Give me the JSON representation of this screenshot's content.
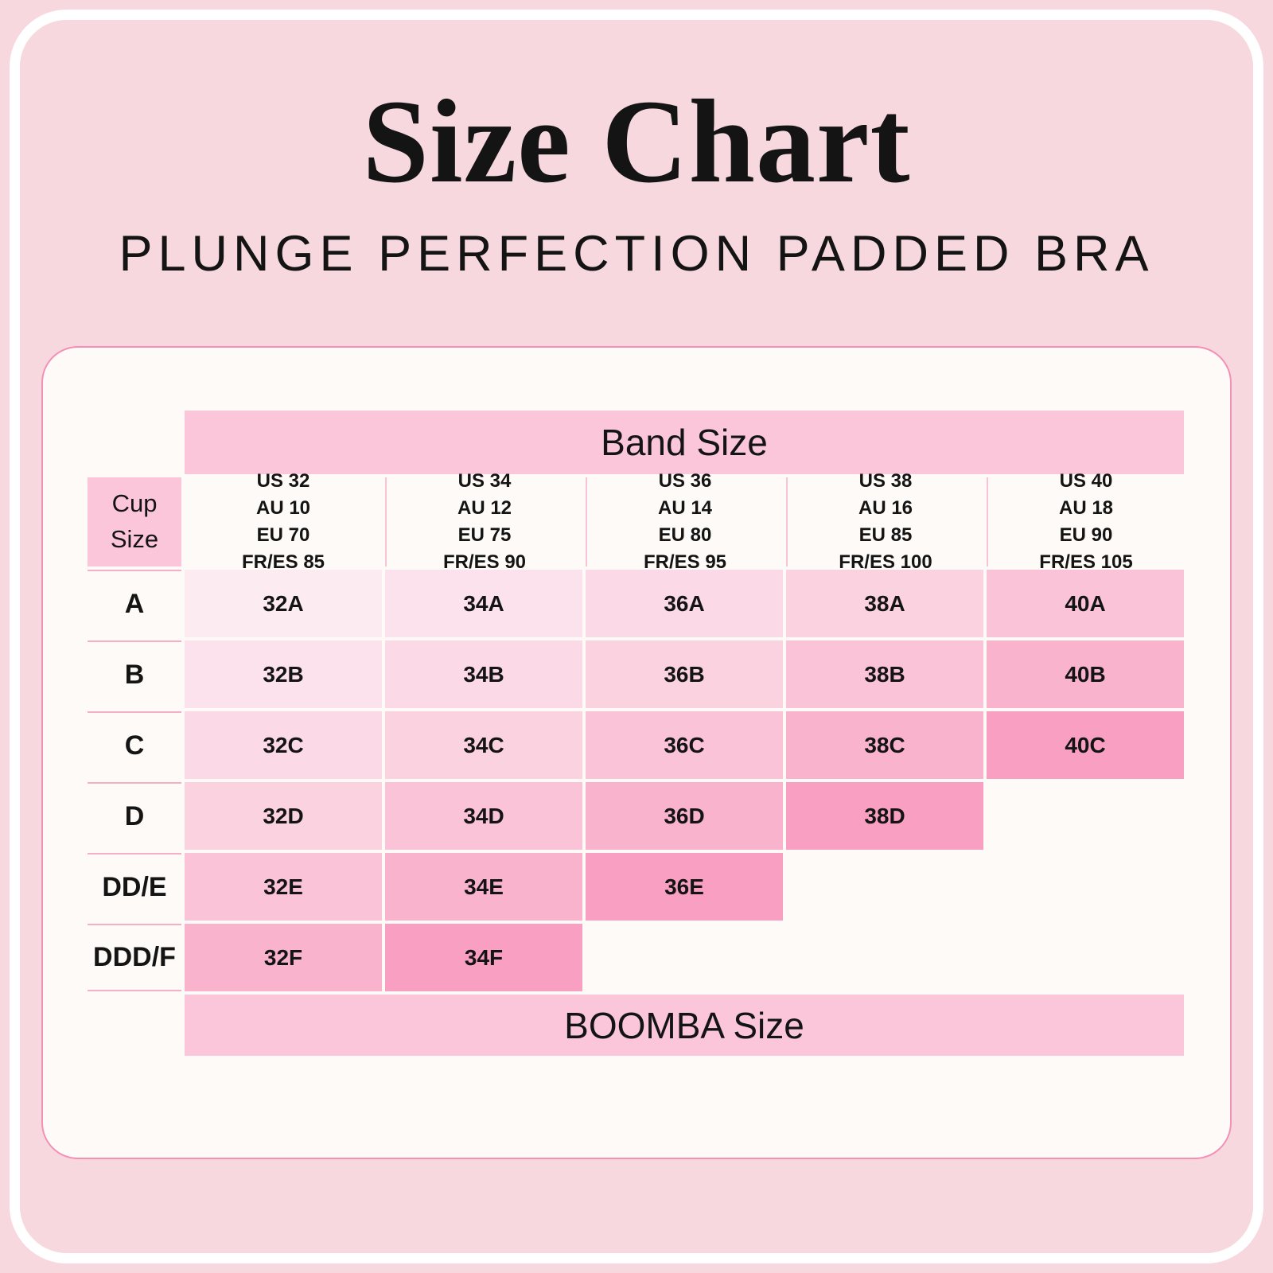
{
  "header": {
    "title": "Size Chart",
    "subtitle": "PLUNGE PERFECTION PADDED BRA"
  },
  "chart_data": {
    "type": "table",
    "title": "Size Chart",
    "subtitle": "PLUNGE PERFECTION PADDED BRA",
    "band_group_label": "Band Size",
    "cup_group_label": "Cup Size",
    "boomba_label": "BOOMBA Size",
    "band_columns": [
      {
        "us": "US 32",
        "au": "AU 10",
        "eu": "EU 70",
        "fr_es": "FR/ES 85"
      },
      {
        "us": "US 34",
        "au": "AU 12",
        "eu": "EU 75",
        "fr_es": "FR/ES 90"
      },
      {
        "us": "US 36",
        "au": "AU 14",
        "eu": "EU 80",
        "fr_es": "FR/ES 95"
      },
      {
        "us": "US 38",
        "au": "AU 16",
        "eu": "EU 85",
        "fr_es": "FR/ES 100"
      },
      {
        "us": "US 40",
        "au": "AU 18",
        "eu": "EU 90",
        "fr_es": "FR/ES 105"
      }
    ],
    "cup_rows": [
      {
        "label": "A",
        "cells": [
          "32A",
          "34A",
          "36A",
          "38A",
          "40A"
        ]
      },
      {
        "label": "B",
        "cells": [
          "32B",
          "34B",
          "36B",
          "38B",
          "40B"
        ]
      },
      {
        "label": "C",
        "cells": [
          "32C",
          "34C",
          "36C",
          "38C",
          "40C"
        ]
      },
      {
        "label": "D",
        "cells": [
          "32D",
          "34D",
          "36D",
          "38D"
        ]
      },
      {
        "label": "DD/E",
        "cells": [
          "32E",
          "34E",
          "36E"
        ]
      },
      {
        "label": "DDD/F",
        "cells": [
          "32F",
          "34F"
        ]
      }
    ],
    "shade_scale_light_to_dark": [
      "#FDEBF2",
      "#FCE2EC",
      "#FBD9E6",
      "#FBD2E0",
      "#FAC3D7",
      "#FAB3CD",
      "#F9A0C2"
    ]
  },
  "colors": {
    "page_bg": "#F6D8DE",
    "frame_stroke": "#FFFFFF",
    "card_bg": "#FDFAF7",
    "card_border": "#F48FB6",
    "header_pink": "#FBC6DA",
    "row_separator": "#F5AFC9",
    "header_divider": "#F7C3D6",
    "text": "#141414"
  }
}
